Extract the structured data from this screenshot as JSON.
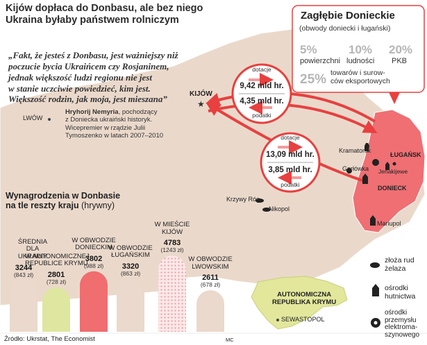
{
  "title_line1": "Kijów dopłaca do Donbasu, ale bez niego",
  "title_line2": "Ukraina byłaby państwem rolniczym",
  "quote": {
    "line1": "„Fakt, że jesteś z Donbasu, jest ważniejszy niż",
    "line2": "poczucie bycia Ukraińcem czy Rosjaninem,",
    "line3": "jednak większość ludzi regionu nie jest",
    "line4": "w stanie uczciwie powiedzieć, kim jest.",
    "line5": "Większość rodzin, jak moja, jest mieszana”",
    "author": "Hryhorij Nemyria",
    "attr1": ", pochodzący",
    "attr2": "z Doniecka ukraiński historyk.",
    "attr3": "Wicepremier w rządzie Julii",
    "attr4": "Tymoszenko w latach 2007–2010"
  },
  "box": {
    "title": "Zagłębie Donieckie",
    "subtitle": "(obwody doniecki i ługański)",
    "stats": [
      {
        "value": "5%",
        "label": "powierzchni"
      },
      {
        "value": "10%",
        "label": "ludności"
      },
      {
        "value": "20%",
        "label": "PKB"
      },
      {
        "value": "25%",
        "label_line1": "towarów i surow-",
        "label_line2": "ców eksportowych"
      }
    ]
  },
  "flows": [
    {
      "top_label": "dotacje",
      "top_value": "9,42 mld hr.",
      "bottom_value": "4,35 mld hr.",
      "bottom_label": "podatki"
    },
    {
      "top_label": "dotacje",
      "top_value": "13,09 mld hr.",
      "bottom_value": "3,85 mld hr.",
      "bottom_label": "podatki"
    }
  ],
  "cities": {
    "kijow": "KIJÓW",
    "lwow": "LWÓW",
    "krzywy_rog": "Krzywy Róg",
    "nikopol": "Nikopol",
    "kramatorsk": "Kramatorsk",
    "gorlowka": "Gorłówka",
    "lugansk": "ŁUGAŃSK",
    "jenakijewe": "Jenakijewe",
    "donieck": "DONIECK",
    "mariupol": "Mariupol",
    "sewastopol": "SEWASTOPOL",
    "crimea_line1": "AUTONOMICZNA",
    "crimea_line2": "REPUBLIKA KRYMU"
  },
  "legend": {
    "ores_line1": "złoża rud",
    "ores_line2": "żelaza",
    "steel_line1": "ośrodki",
    "steel_line2": "hutnictwa",
    "electro_line1": "ośrodki",
    "electro_line2": "przemysłu",
    "electro_line3": "elektroma-",
    "electro_line4": "szynowego"
  },
  "wages": {
    "title_line1": "Wynagrodzenia w Donbasie",
    "title_line2": "na tle reszty kraju",
    "title_unit": "(hrywny)"
  },
  "chart_data": {
    "type": "bar",
    "title": "Wynagrodzenia w Donbasie na tle reszty kraju (hrywny)",
    "categories": [
      "ŚREDNIA DLA UKRAINY",
      "W AUTONOMICZNEJ REPUBLICE KRYMU",
      "W OBWODZIE DONIECKIM",
      "W OBWODZIE ŁUGAŃSKIM",
      "W MIEŚCIE KIJÓW",
      "W OBWODZIE LWOWSKIM"
    ],
    "category_lines": [
      [
        "ŚREDNIA",
        "DLA",
        "UKRAINY"
      ],
      [
        "W AUTONOMICZNEJ",
        "REPUBLICE KRYMU"
      ],
      [
        "W OBWODZIE",
        "DONIECKIM"
      ],
      [
        "W OBWODZIE",
        "ŁUGAŃSKIM"
      ],
      [
        "W MIEŚCIE",
        "KIJÓW"
      ],
      [
        "W OBWODZIE",
        "LWOWSKIM"
      ]
    ],
    "values": [
      3244,
      2801,
      3802,
      3320,
      4783,
      2611
    ],
    "value_labels": [
      "3244",
      "2801",
      "3802",
      "3320",
      "4783",
      "2611"
    ],
    "eur_labels": [
      "(843 zł)",
      "(728 zł)",
      "(988 zł)",
      "(863 zł)",
      "(1243 zł)",
      "(678 zł)"
    ],
    "colors": [
      "#ead9cc",
      "#dfe6a0",
      "#f06d70",
      "#ead9cc",
      "#f7c9c9",
      "#ead9cc"
    ],
    "patterns": [
      "plain",
      "plain",
      "plain",
      "plain",
      "dotted",
      "plain"
    ]
  },
  "source": "Źródło: Ukrstat, The Economist",
  "credit": "MC",
  "colors": {
    "map": "#ead9cb",
    "donbas": "#ef6f73",
    "crimea": "#e2e79b",
    "accent_red": "#e8403f",
    "gray_text": "#b5b5b5"
  },
  "icons": {
    "ores": "ore-deposit-icon",
    "steel": "steelworks-icon",
    "electro": "gear-icon",
    "capital": "star-icon"
  }
}
